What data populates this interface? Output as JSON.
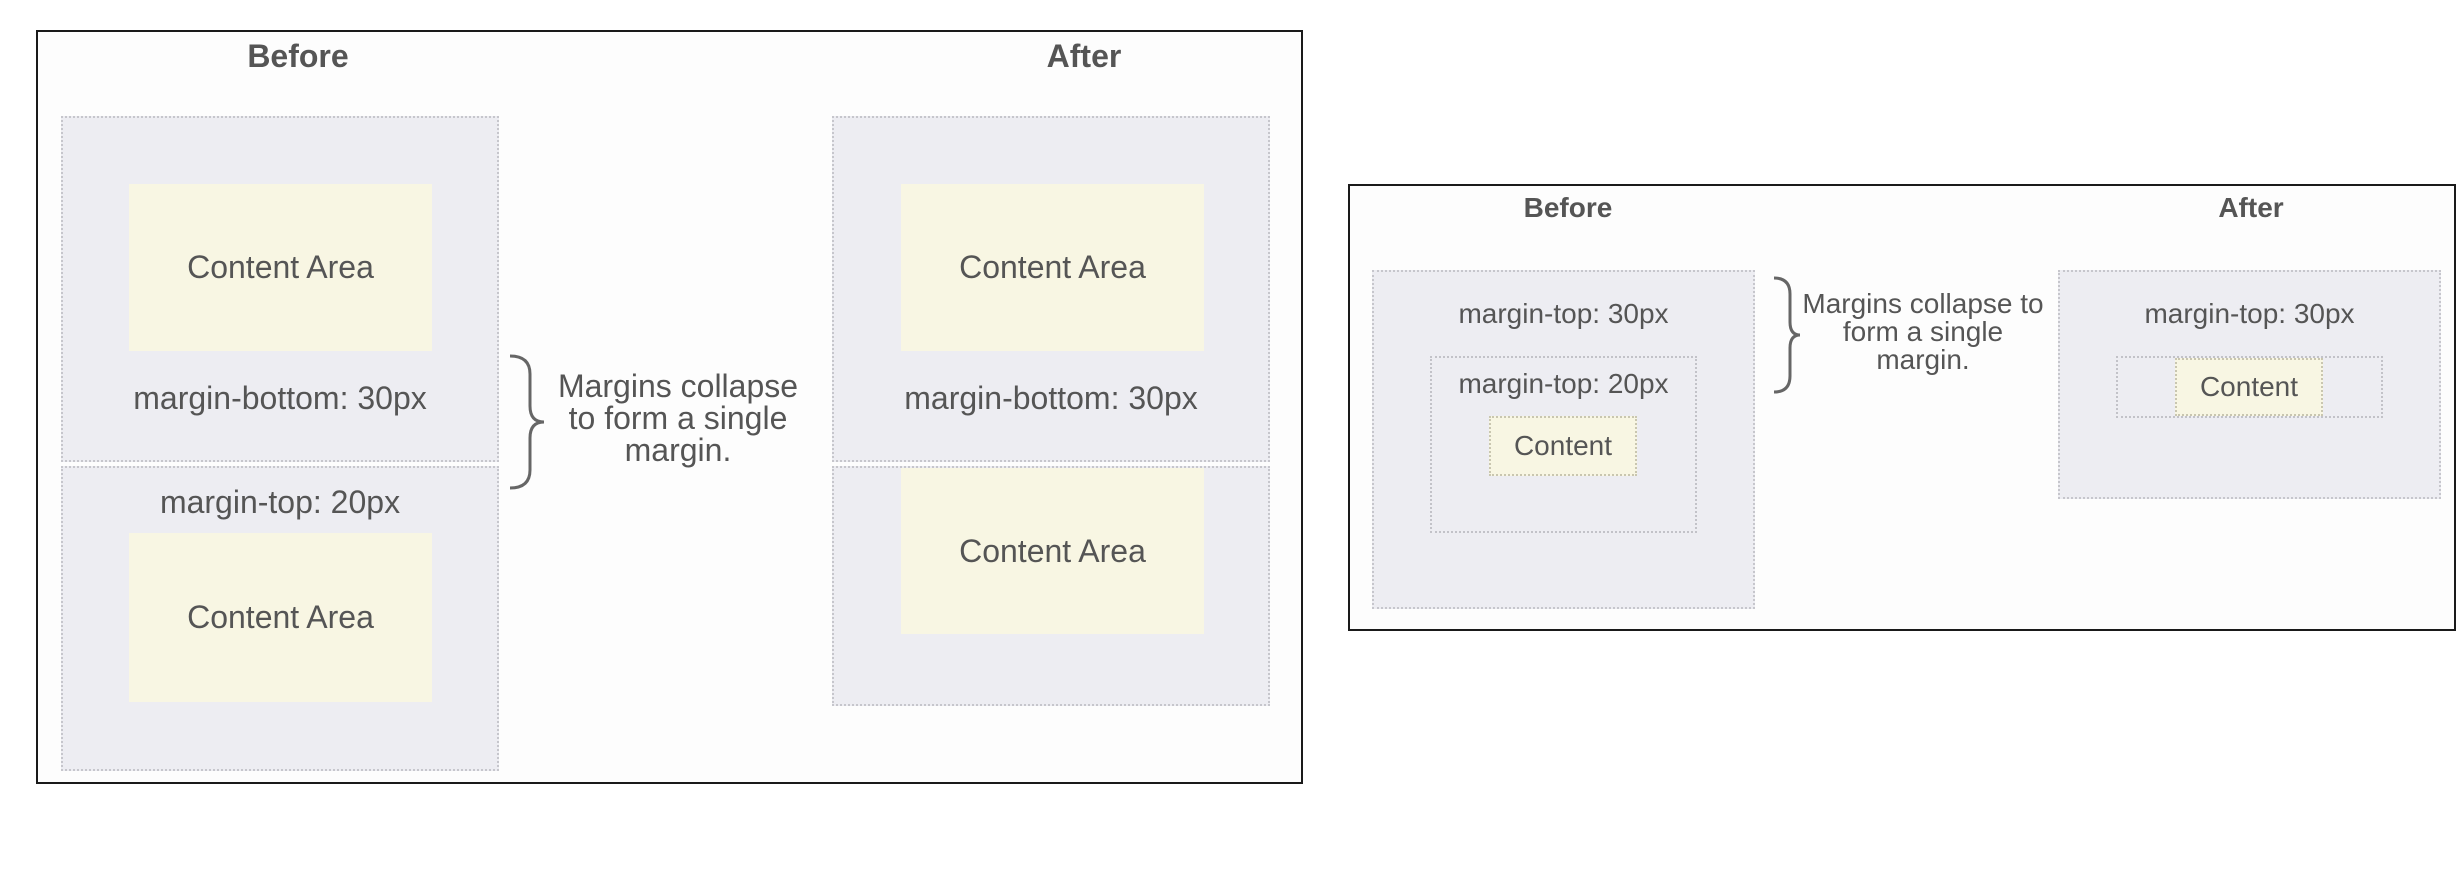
{
  "left_panel": {
    "before_heading": "Before",
    "after_heading": "After",
    "before": {
      "top_content": "Content Area",
      "top_margin_label": "margin-bottom: 30px",
      "bottom_margin_label": "margin-top: 20px",
      "bottom_content": "Content Area"
    },
    "caption": "Margins collapse to form a single margin.",
    "after": {
      "top_content": "Content Area",
      "top_margin_label": "margin-bottom: 30px",
      "bottom_content": "Content Area"
    }
  },
  "right_panel": {
    "before_heading": "Before",
    "after_heading": "After",
    "before": {
      "outer_margin_label": "margin-top: 30px",
      "inner_margin_label": "margin-top: 20px",
      "content": "Content"
    },
    "caption": "Margins collapse to form a single margin.",
    "after": {
      "outer_margin_label": "margin-top: 30px",
      "content": "Content"
    }
  }
}
